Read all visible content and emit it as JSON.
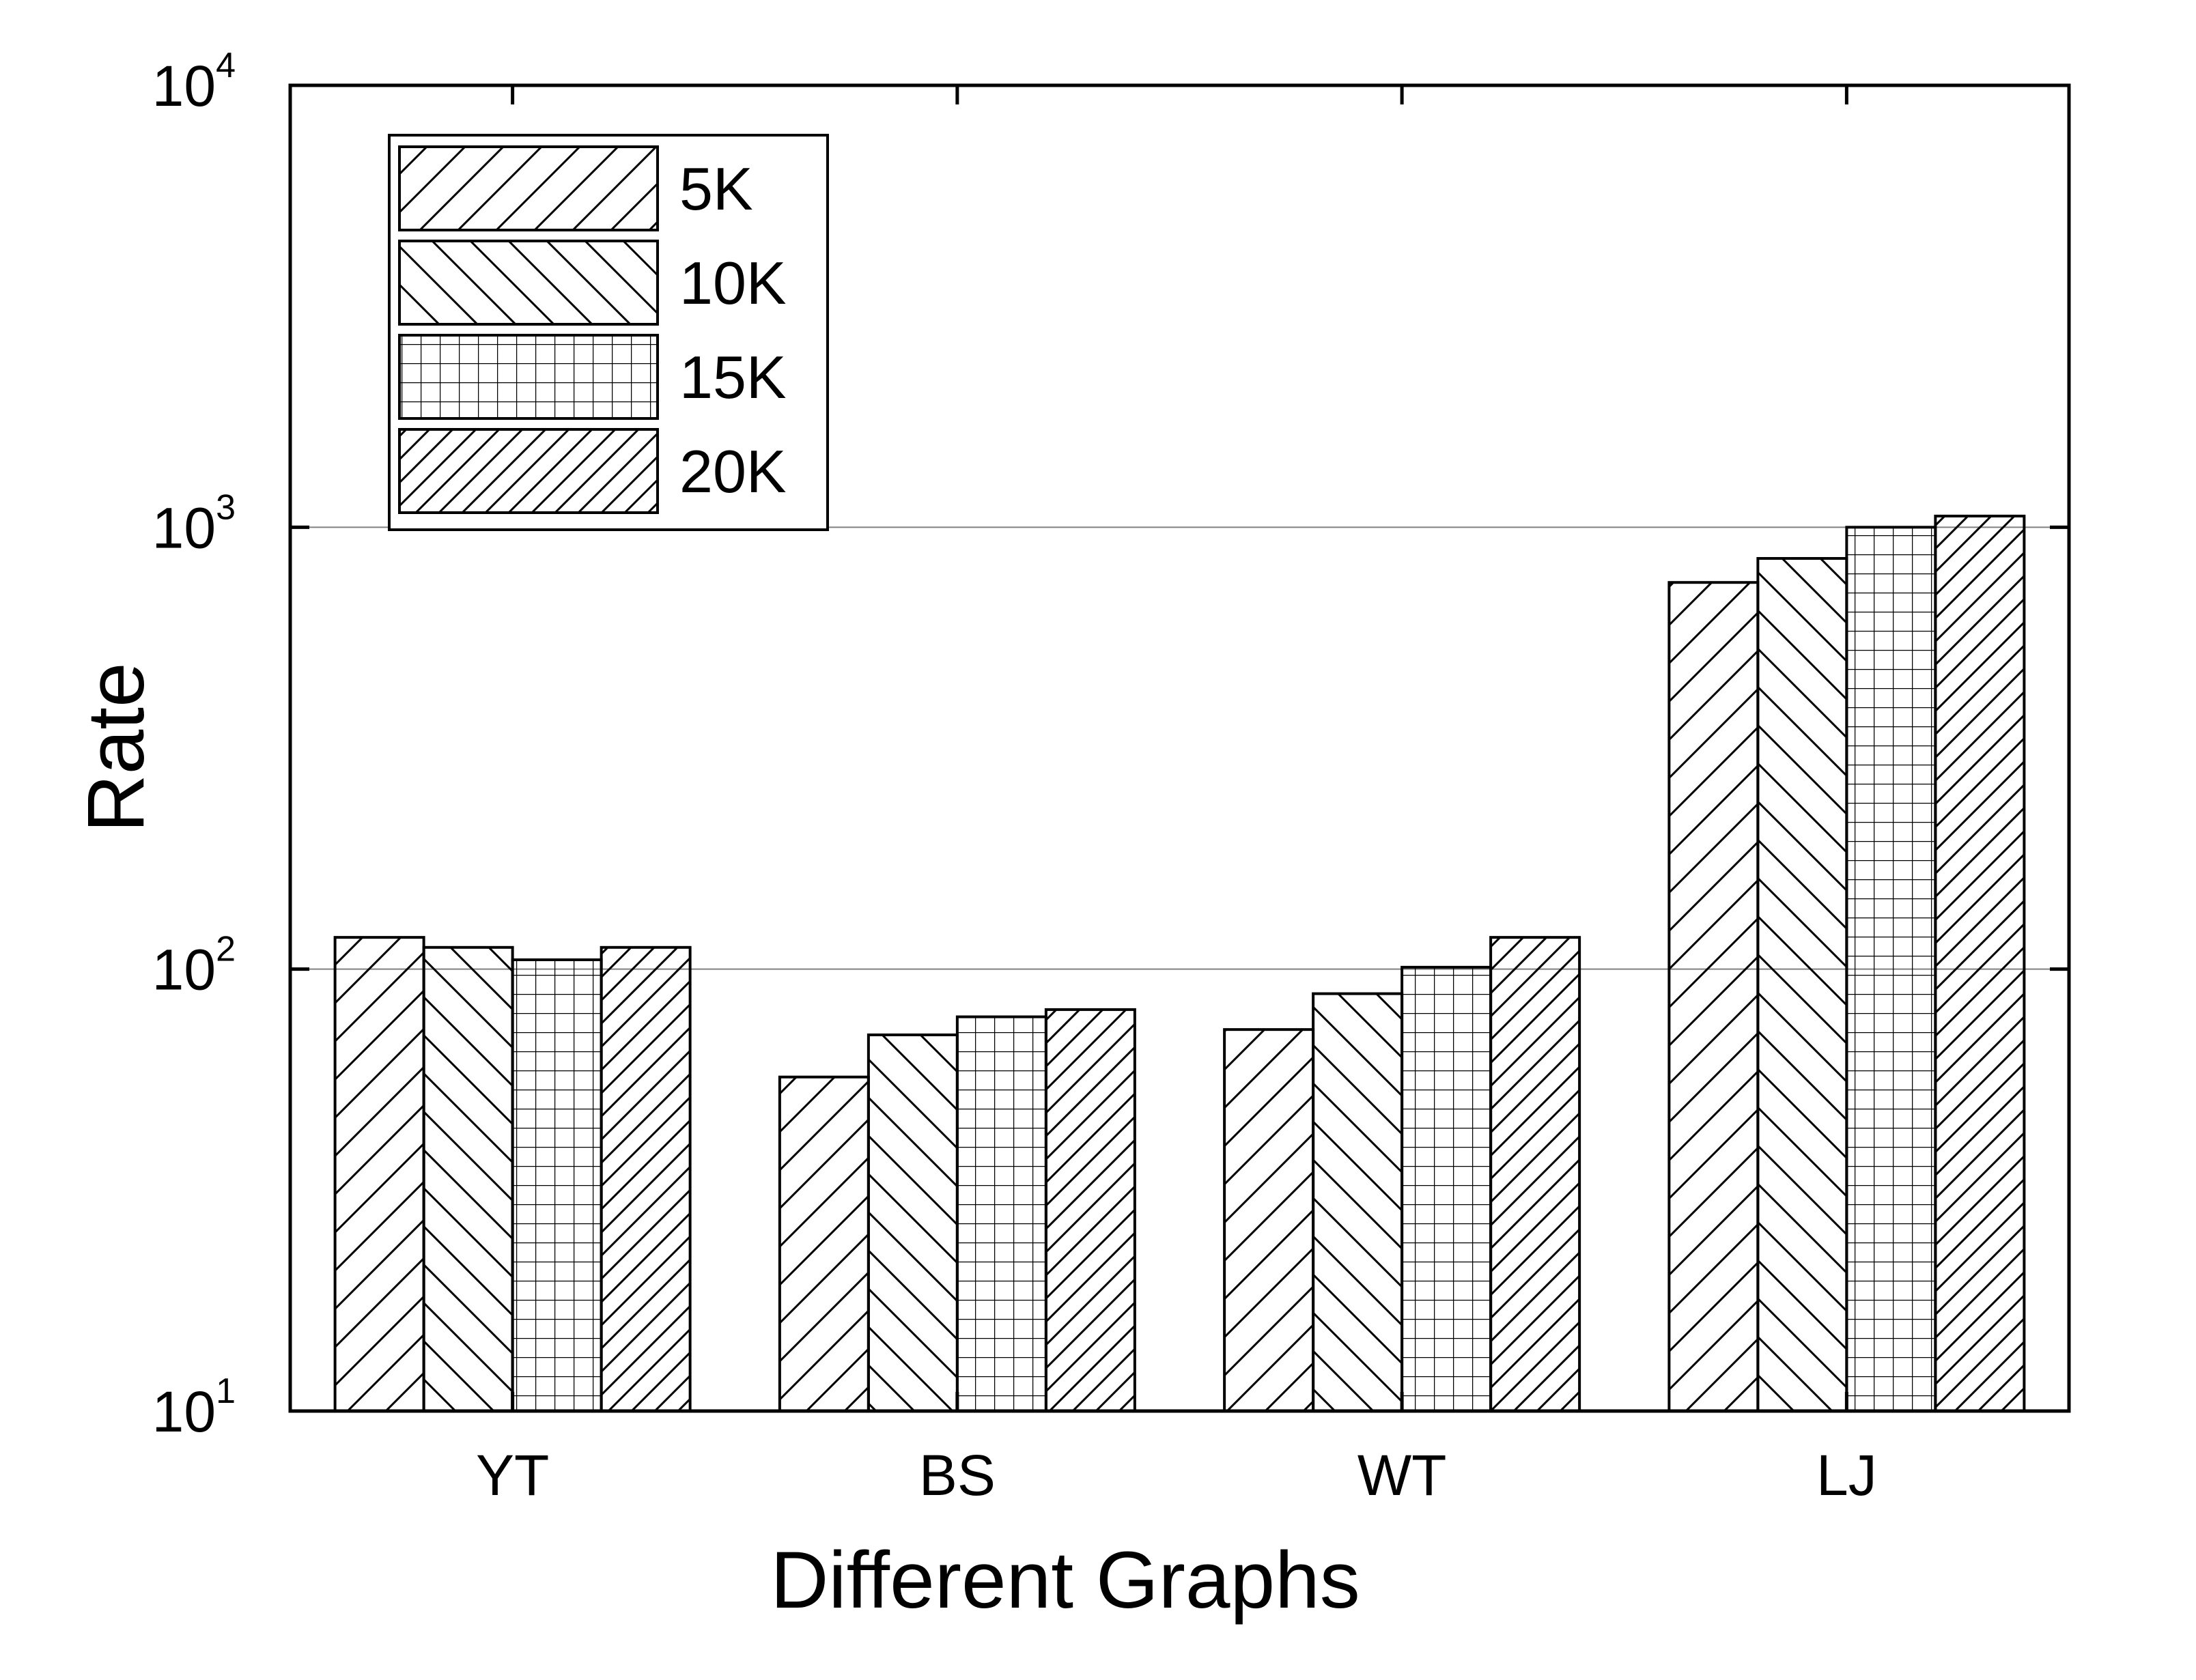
{
  "chart_data": {
    "type": "bar",
    "title": "",
    "xlabel": "Different Graphs",
    "ylabel": "Rate",
    "y_scale": "log",
    "ylim": [
      10,
      10000
    ],
    "y_ticks": [
      {
        "value": 10,
        "base": "10",
        "exp": "1"
      },
      {
        "value": 100,
        "base": "10",
        "exp": "2"
      },
      {
        "value": 1000,
        "base": "10",
        "exp": "3"
      },
      {
        "value": 10000,
        "base": "10",
        "exp": "4"
      }
    ],
    "grid": "horizontal at 10^2 and 10^3",
    "legend_position": "top-left",
    "categories": [
      "YT",
      "BS",
      "WT",
      "LJ"
    ],
    "series": [
      {
        "name": "5K",
        "pattern": "forward-diagonal-hatch",
        "values": [
          118,
          57,
          73,
          750
        ]
      },
      {
        "name": "10K",
        "pattern": "backward-diagonal-hatch",
        "values": [
          112,
          71,
          88,
          850
        ]
      },
      {
        "name": "15K",
        "pattern": "grid-hatch",
        "values": [
          105,
          78,
          101,
          1000
        ]
      },
      {
        "name": "20K",
        "pattern": "dense-diagonal-hatch",
        "values": [
          112,
          81,
          118,
          1060
        ]
      }
    ],
    "colors": {
      "bar_fill": "#ffffff",
      "stroke": "#000000",
      "gridline": "#808080"
    }
  }
}
